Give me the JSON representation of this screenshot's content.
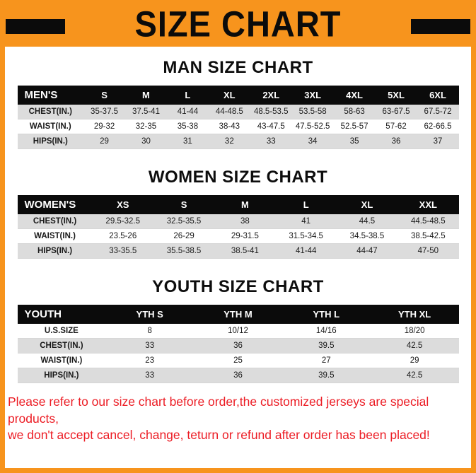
{
  "page": {
    "title": "SIZE CHART",
    "footer_line1": "Please refer to our size chart before order,the customized jerseys are special products,",
    "footer_line2": "we don't accept cancel, change, teturn or refund after order has been placed!"
  },
  "colors": {
    "accent_orange": "#F7941D",
    "header_black": "#0b0b0b",
    "row_gray": "#dcdcdc",
    "footer_red": "#EC1C24"
  },
  "sections": [
    {
      "heading": "MAN SIZE CHART",
      "table": {
        "header": [
          "MEN'S",
          "S",
          "M",
          "L",
          "XL",
          "2XL",
          "3XL",
          "4XL",
          "5XL",
          "6XL"
        ],
        "rows": [
          [
            "CHEST(IN.)",
            "35-37.5",
            "37.5-41",
            "41-44",
            "44-48.5",
            "48.5-53.5",
            "53.5-58",
            "58-63",
            "63-67.5",
            "67.5-72"
          ],
          [
            "WAIST(IN.)",
            "29-32",
            "32-35",
            "35-38",
            "38-43",
            "43-47.5",
            "47.5-52.5",
            "52.5-57",
            "57-62",
            "62-66.5"
          ],
          [
            "HIPS(IN.)",
            "29",
            "30",
            "31",
            "32",
            "33",
            "34",
            "35",
            "36",
            "37"
          ]
        ]
      }
    },
    {
      "heading": "WOMEN SIZE CHART",
      "table": {
        "header": [
          "WOMEN'S",
          "XS",
          "S",
          "M",
          "L",
          "XL",
          "XXL"
        ],
        "rows": [
          [
            "CHEST(IN.)",
            "29.5-32.5",
            "32.5-35.5",
            "38",
            "41",
            "44.5",
            "44.5-48.5"
          ],
          [
            "WAIST(IN.)",
            "23.5-26",
            "26-29",
            "29-31.5",
            "31.5-34.5",
            "34.5-38.5",
            "38.5-42.5"
          ],
          [
            "HIPS(IN.)",
            "33-35.5",
            "35.5-38.5",
            "38.5-41",
            "41-44",
            "44-47",
            "47-50"
          ]
        ]
      }
    },
    {
      "heading": "YOUTH SIZE CHART",
      "table": {
        "header": [
          "YOUTH",
          "YTH S",
          "YTH M",
          "YTH L",
          "YTH XL"
        ],
        "rows": [
          [
            "U.S.SIZE",
            "8",
            "10/12",
            "14/16",
            "18/20"
          ],
          [
            "CHEST(IN.)",
            "33",
            "36",
            "39.5",
            "42.5"
          ],
          [
            "WAIST(IN.)",
            "23",
            "25",
            "27",
            "29"
          ],
          [
            "HIPS(IN.)",
            "33",
            "36",
            "39.5",
            "42.5"
          ]
        ]
      }
    }
  ]
}
